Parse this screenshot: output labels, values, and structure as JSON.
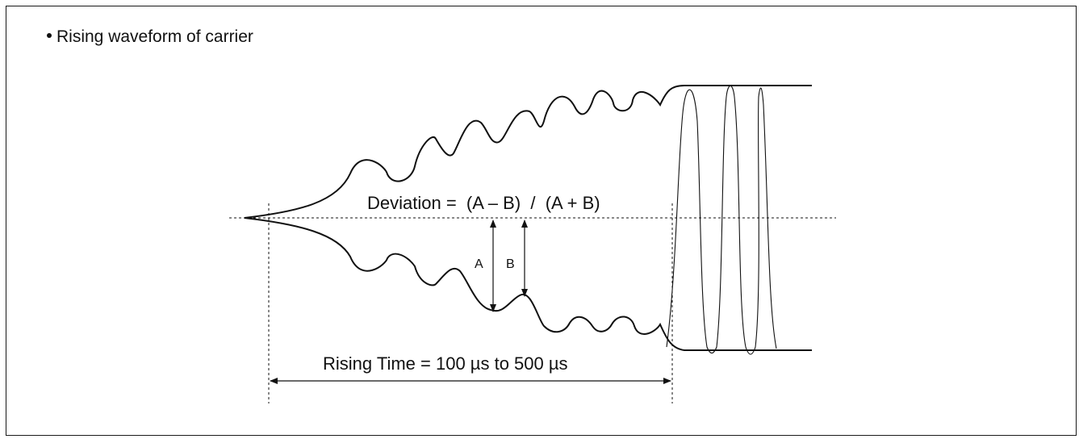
{
  "heading": "Rising waveform of carrier",
  "formula": "Deviation =  (A – B)  /  (A + B)",
  "label_a": "A",
  "label_b": "B",
  "rising_time": "Rising Time = 100 µs to 500 µs",
  "colors": {
    "ink": "#111111",
    "frame": "#1a1a1a"
  }
}
